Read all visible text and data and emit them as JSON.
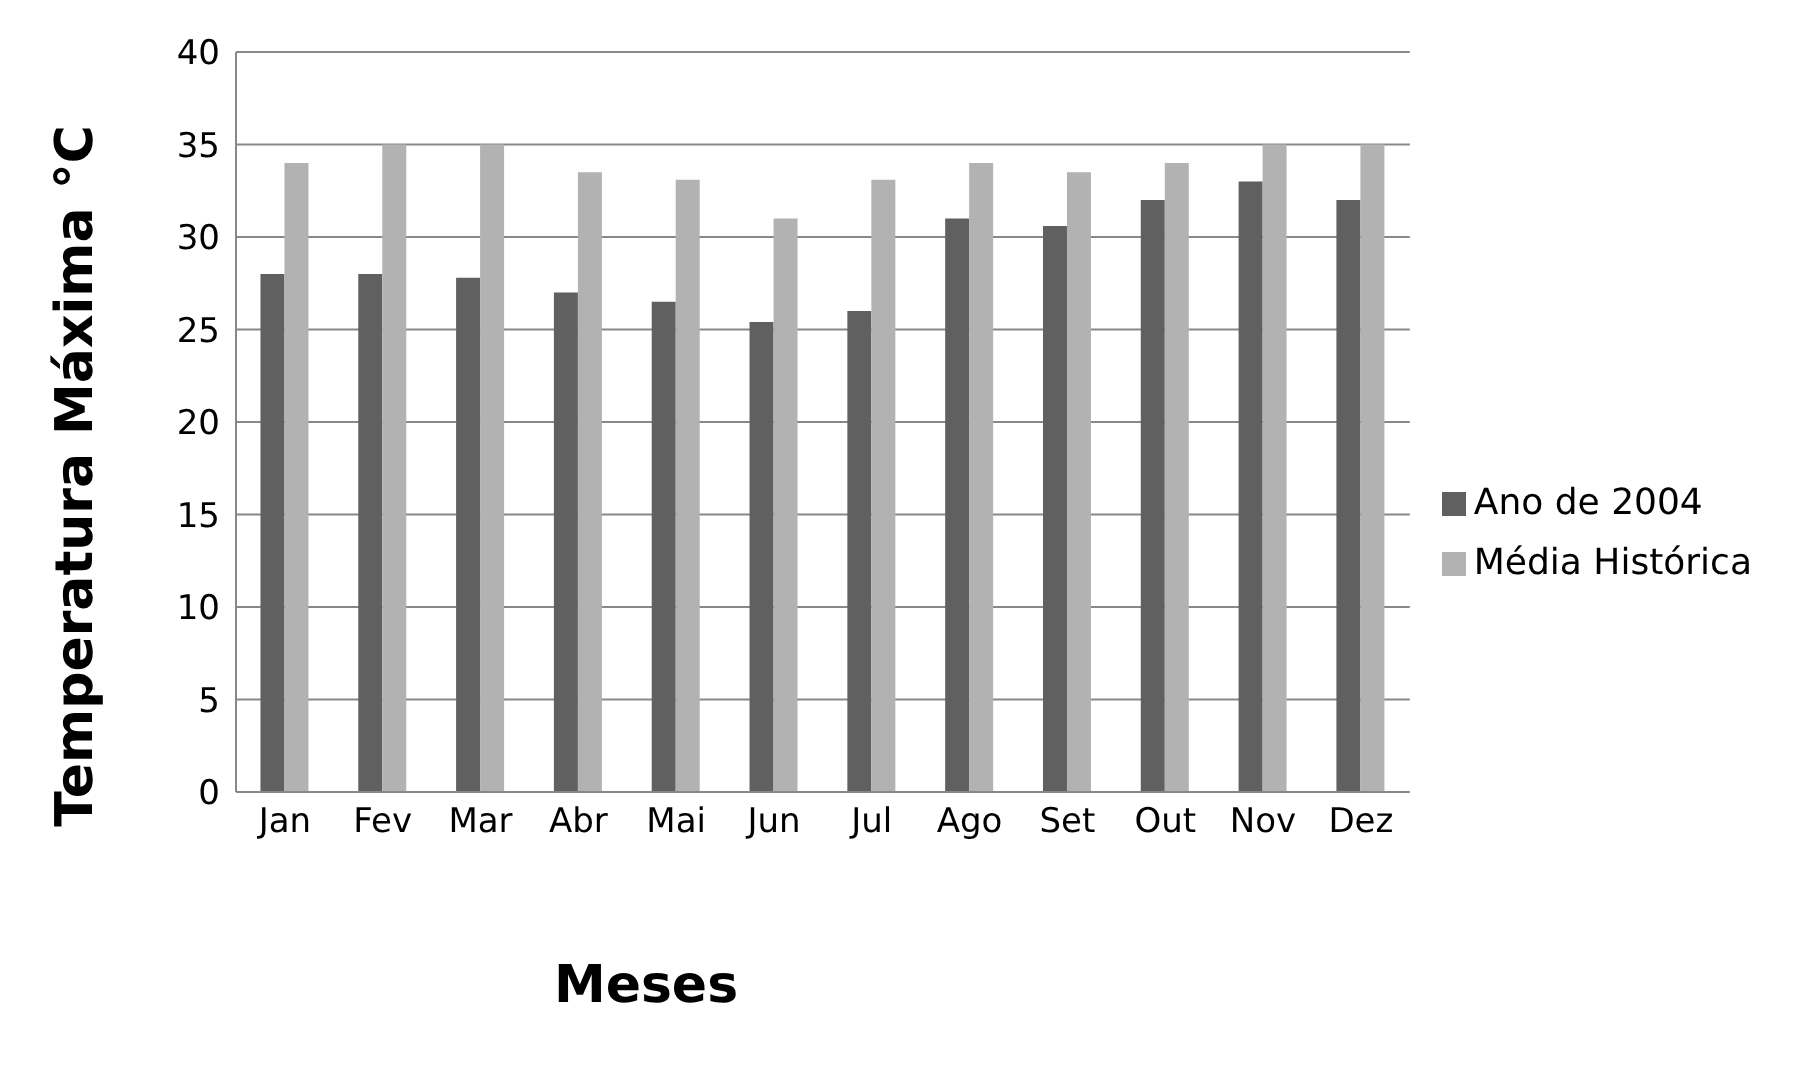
{
  "chart_data": {
    "type": "bar",
    "xlabel": "Meses",
    "ylabel": "Temperatura Máxima °C",
    "categories": [
      "Jan",
      "Fev",
      "Mar",
      "Abr",
      "Mai",
      "Jun",
      "Jul",
      "Ago",
      "Set",
      "Out",
      "Nov",
      "Dez"
    ],
    "series": [
      {
        "name": "Ano de 2004",
        "color": "#606060",
        "values": [
          28,
          28,
          27.8,
          27,
          26.5,
          25.4,
          26,
          31,
          30.6,
          32,
          33,
          32
        ]
      },
      {
        "name": "Média Histórica",
        "color": "#b2b2b2",
        "values": [
          34,
          35,
          35,
          33.5,
          33.1,
          31,
          33.1,
          34,
          33.5,
          34,
          35,
          35
        ]
      }
    ],
    "ylim": [
      0,
      40
    ],
    "yticks": [
      0,
      5,
      10,
      15,
      20,
      25,
      30,
      35,
      40
    ],
    "grid": "y",
    "legend": "right"
  }
}
